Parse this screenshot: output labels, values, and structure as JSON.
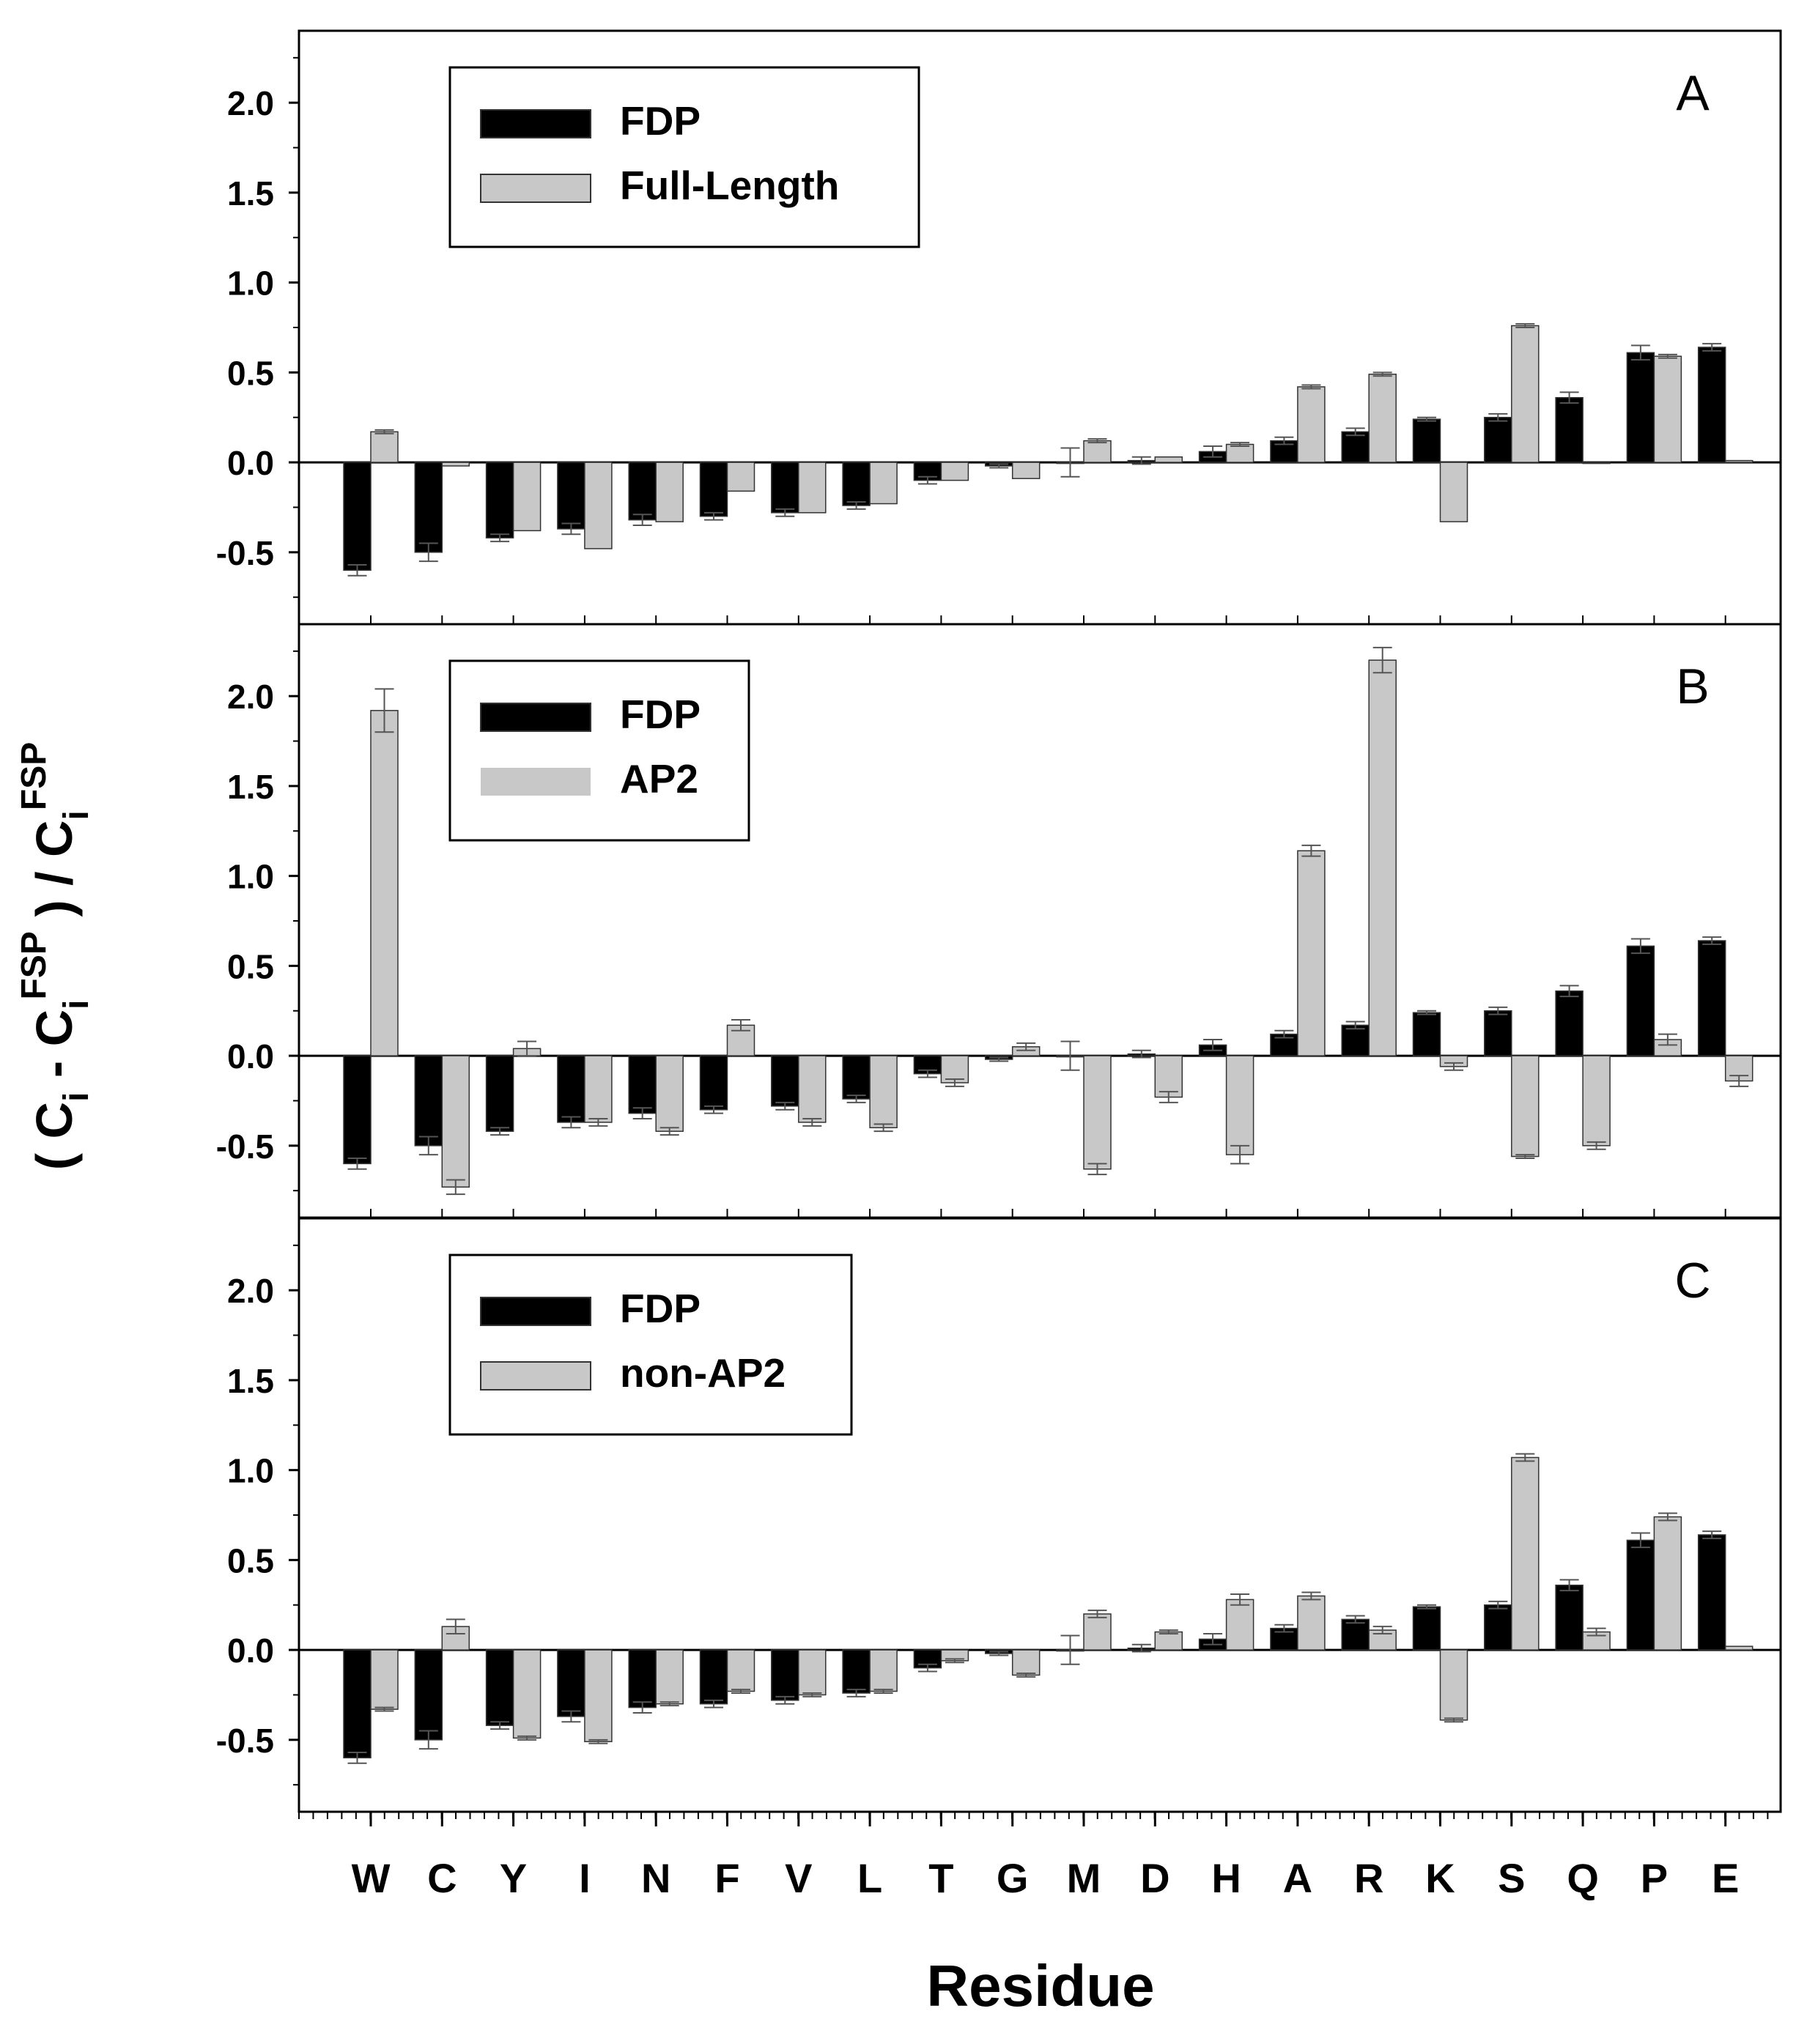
{
  "figure": {
    "ylabel": "( C_i - C_i^FSP ) / C_i^FSP",
    "ylabel_parts": {
      "open": "( C",
      "sub1": "i",
      "mid": " - C",
      "sub2": "i",
      "sup1": "FSP",
      "close": " ) / C",
      "sub3": "i",
      "sup2": "FSP"
    },
    "xlabel": "Residue",
    "colors": {
      "black_bar": "#000000",
      "gray_bar": "#c8c8c8",
      "axis": "#000000",
      "errorbar": "#555555"
    }
  },
  "chart_data": [
    {
      "type": "bar",
      "panel_label": "A",
      "categories": [
        "W",
        "C",
        "Y",
        "I",
        "N",
        "F",
        "V",
        "L",
        "T",
        "G",
        "M",
        "D",
        "H",
        "A",
        "R",
        "K",
        "S",
        "Q",
        "P",
        "E"
      ],
      "ylim": [
        -0.9,
        2.4
      ],
      "yticks": [
        "2.0",
        "1.5",
        "1.0",
        "0.5",
        "0.0",
        "-0.5"
      ],
      "legend": [
        "FDP",
        "Full-Length"
      ],
      "legend_position": "top-left",
      "series": [
        {
          "name": "FDP",
          "values": [
            -0.6,
            -0.5,
            -0.42,
            -0.37,
            -0.32,
            -0.3,
            -0.28,
            -0.24,
            -0.1,
            -0.02,
            0.0,
            0.01,
            0.06,
            0.12,
            0.17,
            0.24,
            0.25,
            0.36,
            0.61,
            0.64
          ],
          "errors": [
            0.03,
            0.05,
            0.02,
            0.03,
            0.03,
            0.02,
            0.02,
            0.02,
            0.02,
            0.01,
            0.08,
            0.02,
            0.03,
            0.02,
            0.02,
            0.01,
            0.02,
            0.03,
            0.04,
            0.02
          ]
        },
        {
          "name": "Full-Length",
          "values": [
            0.17,
            -0.02,
            -0.38,
            -0.48,
            -0.33,
            -0.16,
            -0.28,
            -0.23,
            -0.1,
            -0.09,
            0.12,
            0.03,
            0.1,
            0.42,
            0.49,
            -0.33,
            0.76,
            0.0,
            0.59,
            0.01
          ],
          "errors": [
            0.01,
            0.0,
            0.0,
            0.0,
            0.0,
            0.0,
            0.0,
            0.0,
            0.0,
            0.0,
            0.01,
            0.0,
            0.01,
            0.01,
            0.01,
            0.0,
            0.01,
            0.0,
            0.01,
            0.0
          ]
        }
      ]
    },
    {
      "type": "bar",
      "panel_label": "B",
      "categories": [
        "W",
        "C",
        "Y",
        "I",
        "N",
        "F",
        "V",
        "L",
        "T",
        "G",
        "M",
        "D",
        "H",
        "A",
        "R",
        "K",
        "S",
        "Q",
        "P",
        "E"
      ],
      "ylim": [
        -0.9,
        2.4
      ],
      "yticks": [
        "2.0",
        "1.5",
        "1.0",
        "0.5",
        "0.0",
        "-0.5"
      ],
      "legend": [
        "FDP",
        "AP2"
      ],
      "legend_position": "top-left",
      "series": [
        {
          "name": "FDP",
          "values": [
            -0.6,
            -0.5,
            -0.42,
            -0.37,
            -0.32,
            -0.3,
            -0.28,
            -0.24,
            -0.1,
            -0.02,
            0.0,
            0.01,
            0.06,
            0.12,
            0.17,
            0.24,
            0.25,
            0.36,
            0.61,
            0.64
          ],
          "errors": [
            0.03,
            0.05,
            0.02,
            0.03,
            0.03,
            0.02,
            0.02,
            0.02,
            0.02,
            0.01,
            0.08,
            0.02,
            0.03,
            0.02,
            0.02,
            0.01,
            0.02,
            0.03,
            0.04,
            0.02
          ]
        },
        {
          "name": "AP2",
          "values": [
            1.92,
            -0.73,
            0.04,
            -0.37,
            -0.42,
            0.17,
            -0.37,
            -0.4,
            -0.15,
            0.05,
            -0.63,
            -0.23,
            -0.55,
            1.14,
            2.2,
            -0.06,
            -0.56,
            -0.5,
            0.09,
            -0.14
          ],
          "errors": [
            0.12,
            0.04,
            0.04,
            0.02,
            0.02,
            0.03,
            0.02,
            0.02,
            0.02,
            0.02,
            0.03,
            0.03,
            0.05,
            0.03,
            0.07,
            0.02,
            0.01,
            0.02,
            0.03,
            0.03
          ]
        }
      ]
    },
    {
      "type": "bar",
      "panel_label": "C",
      "categories": [
        "W",
        "C",
        "Y",
        "I",
        "N",
        "F",
        "V",
        "L",
        "T",
        "G",
        "M",
        "D",
        "H",
        "A",
        "R",
        "K",
        "S",
        "Q",
        "P",
        "E"
      ],
      "ylim": [
        -0.9,
        2.4
      ],
      "yticks": [
        "2.0",
        "1.5",
        "1.0",
        "0.5",
        "0.0",
        "-0.5"
      ],
      "legend": [
        "FDP",
        "non-AP2"
      ],
      "legend_position": "top-left",
      "series": [
        {
          "name": "FDP",
          "values": [
            -0.6,
            -0.5,
            -0.42,
            -0.37,
            -0.32,
            -0.3,
            -0.28,
            -0.24,
            -0.1,
            -0.02,
            0.0,
            0.01,
            0.06,
            0.12,
            0.17,
            0.24,
            0.25,
            0.36,
            0.61,
            0.64
          ],
          "errors": [
            0.03,
            0.05,
            0.02,
            0.03,
            0.03,
            0.02,
            0.02,
            0.02,
            0.02,
            0.01,
            0.08,
            0.02,
            0.03,
            0.02,
            0.02,
            0.01,
            0.02,
            0.03,
            0.04,
            0.02
          ]
        },
        {
          "name": "non-AP2",
          "values": [
            -0.33,
            0.13,
            -0.49,
            -0.51,
            -0.3,
            -0.23,
            -0.25,
            -0.23,
            -0.06,
            -0.14,
            0.2,
            0.1,
            0.28,
            0.3,
            0.11,
            -0.39,
            1.07,
            0.1,
            0.74,
            0.02
          ],
          "errors": [
            0.01,
            0.04,
            0.01,
            0.01,
            0.01,
            0.01,
            0.01,
            0.01,
            0.01,
            0.01,
            0.02,
            0.01,
            0.03,
            0.02,
            0.02,
            0.01,
            0.02,
            0.02,
            0.02,
            0.0
          ]
        }
      ]
    }
  ]
}
